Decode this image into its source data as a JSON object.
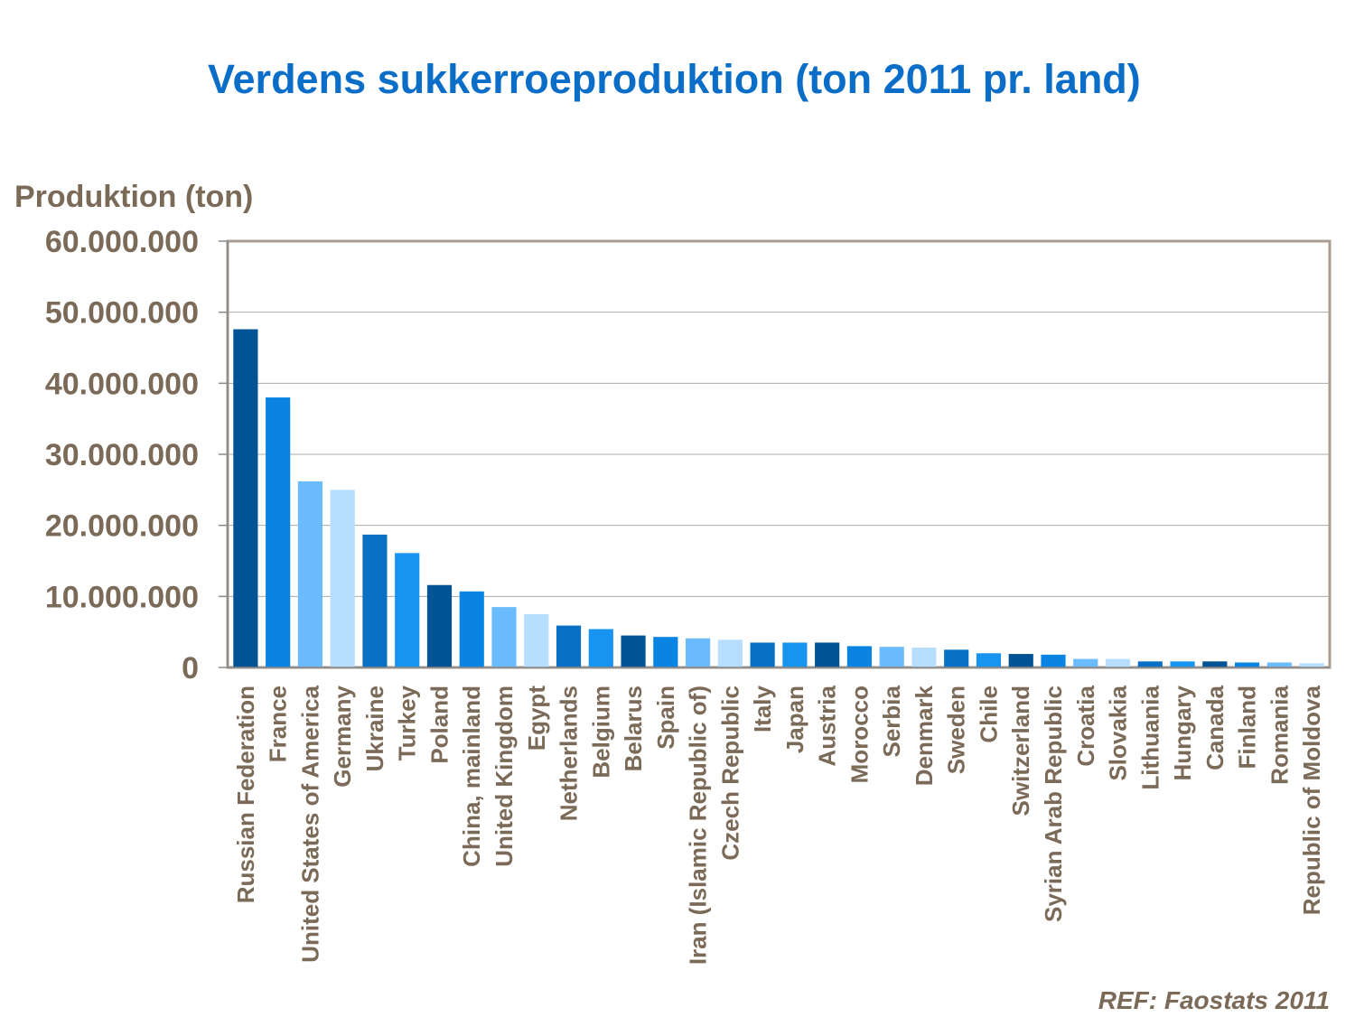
{
  "chart_data": {
    "type": "bar",
    "title": "Verdens sukkerroeproduktion (ton 2011 pr. land)",
    "ylabel": "Produktion (ton)",
    "xlabel": "",
    "ylim": [
      0,
      60000000
    ],
    "yticks": [
      0,
      10000000,
      20000000,
      30000000,
      40000000,
      50000000,
      60000000
    ],
    "ytick_labels": [
      "0",
      "10.000.000",
      "20.000.000",
      "30.000.000",
      "40.000.000",
      "50.000.000",
      "60.000.000"
    ],
    "grid": true,
    "legend": "none",
    "categories": [
      "Russian Federation",
      "France",
      "United States of America",
      "Germany",
      "Ukraine",
      "Turkey",
      "Poland",
      "China, mainland",
      "United Kingdom",
      "Egypt",
      "Netherlands",
      "Belgium",
      "Belarus",
      "Spain",
      "Iran (Islamic Republic of)",
      "Czech Republic",
      "Italy",
      "Japan",
      "Austria",
      "Morocco",
      "Serbia",
      "Denmark",
      "Sweden",
      "Chile",
      "Switzerland",
      "Syrian Arab Republic",
      "Croatia",
      "Slovakia",
      "Lithuania",
      "Hungary",
      "Canada",
      "Finland",
      "Romania",
      "Republic of Moldova"
    ],
    "values": [
      47600000,
      38000000,
      26200000,
      25000000,
      18700000,
      16100000,
      11600000,
      10700000,
      8500000,
      7500000,
      5900000,
      5400000,
      4500000,
      4300000,
      4100000,
      3900000,
      3500000,
      3500000,
      3500000,
      3000000,
      2900000,
      2800000,
      2500000,
      2000000,
      1900000,
      1800000,
      1200000,
      1200000,
      850000,
      850000,
      850000,
      700000,
      700000,
      600000
    ],
    "colors": [
      "#005496",
      "#0A84E2",
      "#6BBBFF",
      "#B8DEFF",
      "#0870C4",
      "#1794F0"
    ]
  },
  "reference": "REF: Faostats 2011"
}
